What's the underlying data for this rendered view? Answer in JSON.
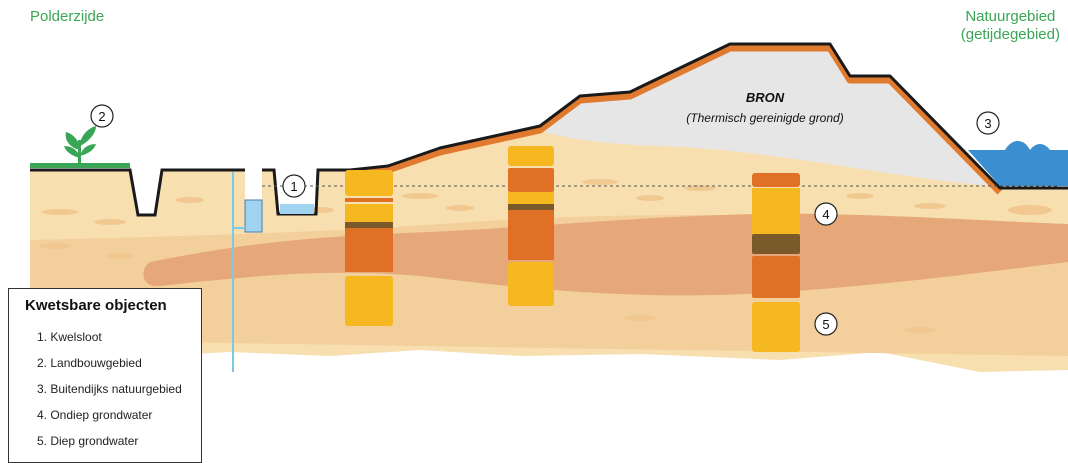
{
  "labels": {
    "left": "Polderzijde",
    "right_line1": "Natuurgebied",
    "right_line2": "(getijdegebied)",
    "source_title": "BRON",
    "source_subtitle": "(Thermisch gereinigde grond)"
  },
  "markers": [
    "1",
    "2",
    "3",
    "4",
    "5"
  ],
  "legend": {
    "title": "Kwetsbare objecten",
    "items": [
      "1. Kwelsloot",
      "2. Landbouwgebied",
      "3. Buitendijks natuurgebied",
      "4. Ondiep grondwater",
      "5. Diep grondwater"
    ]
  },
  "colors": {
    "sand_light": "#f8dfb0",
    "sand_mid": "#f0c890",
    "clay_band": "#e5a06a",
    "source_fill": "#e6e6e6",
    "dike_orange": "#e07a2e",
    "water": "#3b8fd0",
    "core_yellow": "#f6b821",
    "core_orange": "#e07026",
    "core_brown": "#7a5a2a",
    "grass": "#3aa655"
  }
}
